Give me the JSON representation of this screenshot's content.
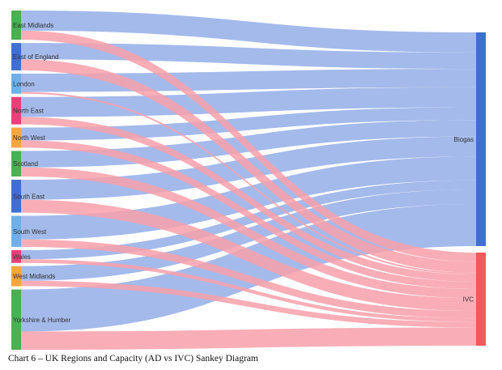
{
  "caption": "Chart 6 – UK Regions and Capacity (AD vs IVC) Sankey Diagram",
  "chart_data": {
    "type": "sankey",
    "title": "",
    "sources": [
      {
        "name": "East Midlands",
        "color": "#4CAF50"
      },
      {
        "name": "East of England",
        "color": "#3F6FD0"
      },
      {
        "name": "London",
        "color": "#6FB0E8"
      },
      {
        "name": "North East",
        "color": "#E8417A"
      },
      {
        "name": "North West",
        "color": "#F5A640"
      },
      {
        "name": "Scotland",
        "color": "#4CAF50"
      },
      {
        "name": "South East",
        "color": "#3F6FD0"
      },
      {
        "name": "South West",
        "color": "#6FB0E8"
      },
      {
        "name": "Wales",
        "color": "#E8417A"
      },
      {
        "name": "West Midlands",
        "color": "#F5A640"
      },
      {
        "name": "Yorkshire & Humber",
        "color": "#4CAF50"
      }
    ],
    "targets": [
      {
        "name": "Biogas",
        "color": "#3F6FD0"
      },
      {
        "name": "IVC",
        "color": "#F05A5A"
      }
    ],
    "link_colors": {
      "Biogas": "#94AEE8",
      "IVC": "#F8A0AA"
    },
    "flows": {
      "Biogas": [
        22,
        18,
        20,
        22,
        14,
        18,
        22,
        26,
        10,
        16,
        46
      ],
      "IVC": [
        10,
        12,
        2,
        8,
        8,
        10,
        14,
        8,
        4,
        6,
        20
      ]
    }
  }
}
